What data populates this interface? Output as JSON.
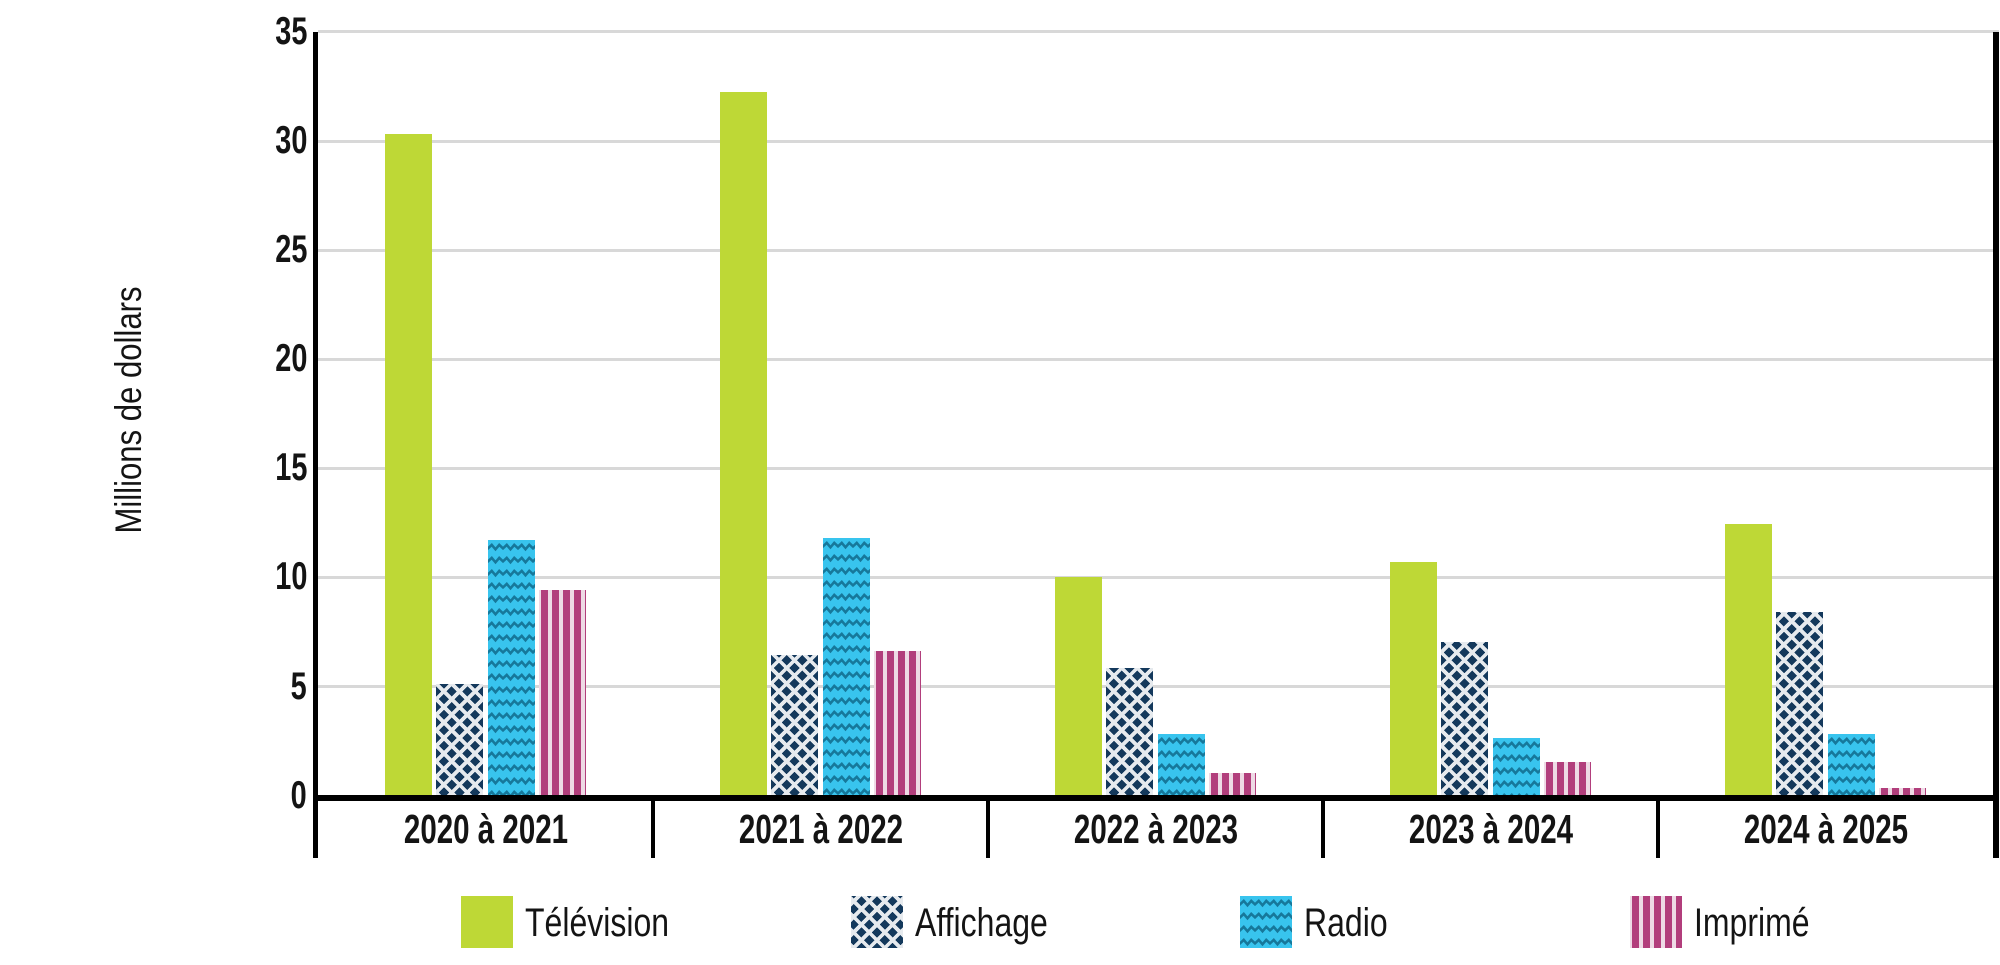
{
  "chart_data": {
    "type": "bar",
    "title": "",
    "xlabel": "",
    "ylabel": "Millions de dollars",
    "ylim": [
      0,
      35
    ],
    "y_ticks": [
      0,
      5,
      10,
      15,
      20,
      25,
      30,
      35
    ],
    "grid": true,
    "legend_position": "bottom",
    "categories": [
      "2020 à 2021",
      "2021 à 2022",
      "2022 à 2023",
      "2023 à 2024",
      "2024 à 2025"
    ],
    "series": [
      {
        "name": "Télévision",
        "pattern": "solid",
        "color": "#bed836",
        "pattern_color": "#bed836",
        "values": [
          30.3,
          32.2,
          10.0,
          10.7,
          12.4
        ]
      },
      {
        "name": "Affichage",
        "pattern": "crosshatch",
        "color": "#14395c",
        "pattern_color": "#e6eaee",
        "values": [
          5.1,
          6.4,
          5.8,
          7.0,
          8.4
        ]
      },
      {
        "name": "Radio",
        "pattern": "zigzag",
        "color": "#38c4ee",
        "pattern_color": "#16789b",
        "values": [
          11.7,
          11.8,
          2.8,
          2.6,
          2.8
        ]
      },
      {
        "name": "Imprimé",
        "pattern": "vertical-stripes",
        "color": "#b23e7c",
        "pattern_color": "#eedae5",
        "values": [
          9.4,
          6.6,
          1.0,
          1.5,
          0.3
        ]
      }
    ],
    "axis_color": "#000000",
    "gridline_color": "#d8d8d8",
    "text_color": "#141414"
  }
}
